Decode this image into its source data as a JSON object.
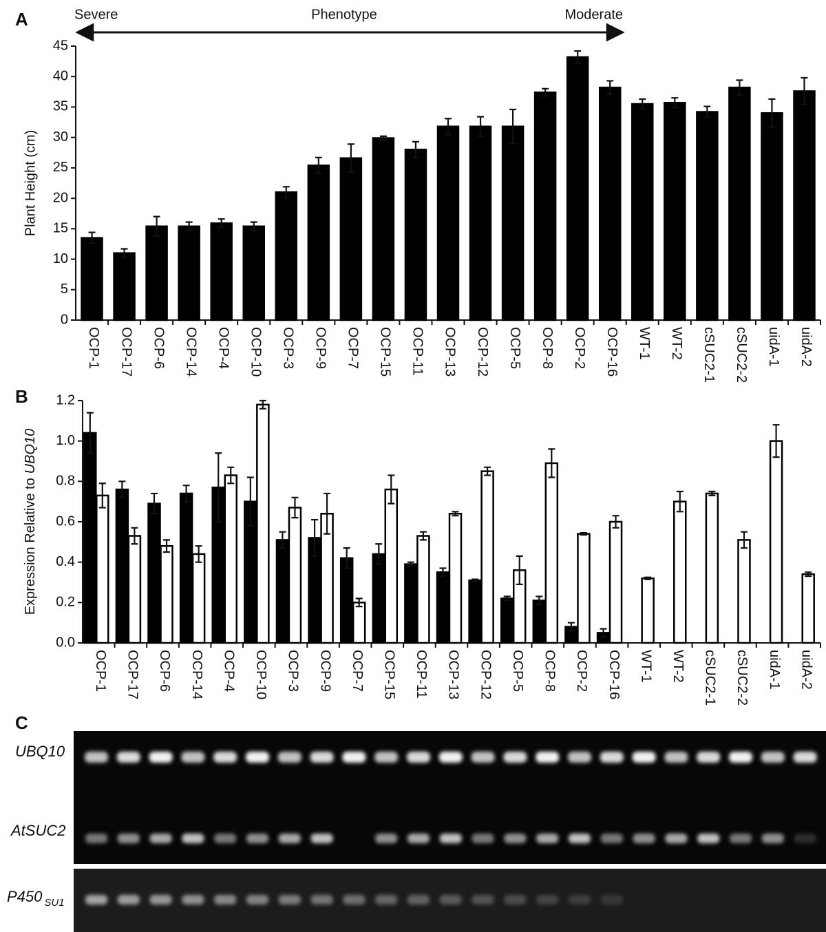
{
  "chart_data": [
    {
      "type": "bar",
      "panel": "A",
      "annotations": [
        "Severe",
        "Phenotype",
        "Moderate"
      ],
      "ylabel": "Plant Height (cm)",
      "categories": [
        "OCP-1",
        "OCP-17",
        "OCP-6",
        "OCP-14",
        "OCP-4",
        "OCP-10",
        "OCP-3",
        "OCP-9",
        "OCP-7",
        "OCP-15",
        "OCP-11",
        "OCP-13",
        "OCP-12",
        "OCP-5",
        "OCP-8",
        "OCP-2",
        "OCP-16",
        "WT-1",
        "WT-2",
        "cSUC2-1",
        "cSUC2-2",
        "uidA-1",
        "uidA-2"
      ],
      "series": [
        {
          "color": "#000000",
          "outline": "#000000",
          "values": [
            13.5,
            11.0,
            15.4,
            15.4,
            15.9,
            15.4,
            21.0,
            25.4,
            26.6,
            29.9,
            28.0,
            31.8,
            31.8,
            31.8,
            37.4,
            43.2,
            38.2,
            35.5,
            35.7,
            34.2,
            38.2,
            34.0,
            37.6
          ],
          "errors": [
            0.9,
            0.7,
            1.6,
            0.7,
            0.7,
            0.7,
            0.9,
            1.3,
            2.3,
            0.3,
            1.3,
            1.3,
            1.6,
            2.8,
            0.6,
            1.0,
            1.1,
            0.8,
            0.8,
            0.9,
            1.2,
            2.3,
            2.2
          ]
        }
      ],
      "ylim": [
        0,
        45
      ],
      "yticks": [
        0,
        5,
        10,
        15,
        20,
        25,
        30,
        35,
        40,
        45
      ]
    },
    {
      "type": "bar",
      "panel": "B",
      "ylabel": "Expression Relative to",
      "ylabel_italic": "UBQ10",
      "categories": [
        "OCP-1",
        "OCP-17",
        "OCP-6",
        "OCP-14",
        "OCP-4",
        "OCP-10",
        "OCP-3",
        "OCP-9",
        "OCP-7",
        "OCP-15",
        "OCP-11",
        "OCP-13",
        "OCP-12",
        "OCP-5",
        "OCP-8",
        "OCP-2",
        "OCP-16",
        "WT-1",
        "WT-2",
        "cSUC2-1",
        "cSUC2-2",
        "uidA-1",
        "uidA-2"
      ],
      "series": [
        {
          "color": "#000000",
          "outline": "#000000",
          "values": [
            1.04,
            0.76,
            0.69,
            0.74,
            0.77,
            0.7,
            0.51,
            0.52,
            0.42,
            0.44,
            0.39,
            0.35,
            0.31,
            0.22,
            0.21,
            0.08,
            0.05,
            null,
            null,
            null,
            null,
            null,
            null
          ],
          "errors": [
            0.1,
            0.04,
            0.05,
            0.04,
            0.17,
            0.12,
            0.04,
            0.09,
            0.05,
            0.05,
            0.01,
            0.02,
            0.005,
            0.01,
            0.02,
            0.02,
            0.02,
            null,
            null,
            null,
            null,
            null,
            null
          ]
        },
        {
          "color": "#ffffff",
          "outline": "#000000",
          "values": [
            0.73,
            0.53,
            0.48,
            0.44,
            0.83,
            1.18,
            0.67,
            0.64,
            0.2,
            0.76,
            0.53,
            0.64,
            0.85,
            0.36,
            0.89,
            0.54,
            0.6,
            0.32,
            0.7,
            0.74,
            0.51,
            1.0,
            0.34
          ],
          "errors": [
            0.06,
            0.04,
            0.03,
            0.04,
            0.04,
            0.02,
            0.05,
            0.1,
            0.02,
            0.07,
            0.02,
            0.01,
            0.02,
            0.07,
            0.07,
            0.005,
            0.03,
            0.005,
            0.05,
            0.01,
            0.04,
            0.08,
            0.01
          ]
        }
      ],
      "ylim": [
        0,
        1.2
      ],
      "yticks": [
        {
          "value": 0,
          "label": "0.0"
        },
        0.2,
        0.4,
        0.6,
        0.8,
        {
          "value": 1,
          "label": "1.0"
        },
        1.2
      ]
    }
  ],
  "gel": {
    "panel": "C",
    "rows": [
      {
        "label": "UBQ10"
      },
      {
        "label": "AtSUC2"
      },
      {
        "label": "P450",
        "subscript": "SU1"
      }
    ]
  }
}
